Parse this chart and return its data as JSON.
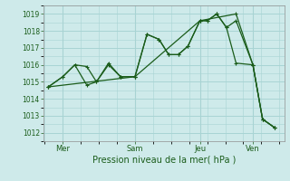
{
  "background_color": "#ceeaea",
  "grid_color": "#a8d4d4",
  "line_color": "#1a5c1a",
  "xlabel": "Pression niveau de la mer( hPa )",
  "ylim": [
    1011.5,
    1019.5
  ],
  "yticks": [
    1012,
    1013,
    1014,
    1015,
    1016,
    1017,
    1018,
    1019
  ],
  "xtick_labels": [
    "Mer",
    "Sam",
    "Jeu",
    "Ven"
  ],
  "xtick_pos": [
    0.08,
    0.38,
    0.65,
    0.87
  ],
  "vline_color": "#b8c8c8",
  "series": [
    {
      "x": [
        0.02,
        0.08,
        0.13,
        0.18,
        0.22,
        0.27,
        0.32,
        0.38,
        0.43,
        0.48,
        0.52,
        0.56,
        0.6,
        0.65,
        0.68,
        0.72,
        0.76,
        0.8,
        0.87,
        0.91,
        0.96
      ],
      "y": [
        1014.7,
        1015.3,
        1016.0,
        1015.9,
        1015.0,
        1016.1,
        1015.3,
        1015.3,
        1017.8,
        1017.5,
        1016.6,
        1016.6,
        1017.1,
        1018.6,
        1018.6,
        1019.0,
        1018.2,
        1018.6,
        1016.0,
        1012.8,
        1012.3
      ]
    },
    {
      "x": [
        0.02,
        0.08,
        0.13,
        0.18,
        0.22,
        0.27,
        0.32,
        0.38,
        0.43,
        0.48,
        0.52,
        0.56,
        0.6,
        0.65,
        0.68,
        0.72,
        0.76,
        0.8,
        0.87,
        0.91,
        0.96
      ],
      "y": [
        1014.7,
        1015.3,
        1016.0,
        1014.8,
        1015.0,
        1016.0,
        1015.3,
        1015.3,
        1017.8,
        1017.5,
        1016.6,
        1016.6,
        1017.1,
        1018.6,
        1018.6,
        1019.0,
        1018.2,
        1016.1,
        1016.0,
        1012.8,
        1012.3
      ]
    },
    {
      "x": [
        0.02,
        0.38,
        0.65,
        0.8,
        0.87,
        0.91,
        0.96
      ],
      "y": [
        1014.7,
        1015.3,
        1018.6,
        1019.0,
        1016.0,
        1012.8,
        1012.3
      ]
    }
  ]
}
